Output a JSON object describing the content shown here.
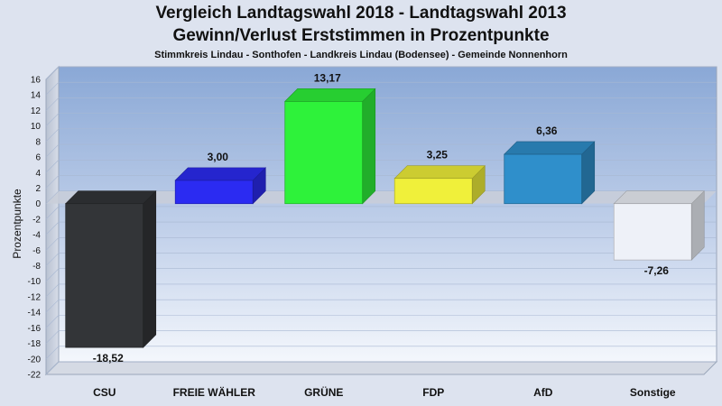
{
  "header": {
    "title_line1": "Vergleich Landtagswahl 2018 - Landtagswahl 2013",
    "title_line2": "Gewinn/Verlust Erststimmen in Prozentpunkte",
    "subtitle": "Stimmkreis Lindau - Sonthofen - Landkreis Lindau (Bodensee) - Gemeinde Nonnenhorn"
  },
  "chart_data": {
    "type": "bar",
    "title": "Vergleich Landtagswahl 2018 - Landtagswahl 2013",
    "subtitle": "Gewinn/Verlust Erststimmen in Prozentpunkte",
    "xlabel": "",
    "ylabel": "Prozentpunkte",
    "ylim": [
      -22,
      16
    ],
    "yticks": [
      16,
      14,
      12,
      10,
      8,
      6,
      4,
      2,
      0,
      -2,
      -4,
      -6,
      -8,
      -10,
      -12,
      -14,
      -16,
      -18,
      -20,
      -22
    ],
    "grid": true,
    "categories": [
      "CSU",
      "FREIE WÄHLER",
      "GRÜNE",
      "FDP",
      "AfD",
      "Sonstige"
    ],
    "values": [
      -18.52,
      3.0,
      13.17,
      3.25,
      6.36,
      -7.26
    ],
    "value_labels": [
      "-18,52",
      "3,00",
      "13,17",
      "3,25",
      "6,36",
      "-7,26"
    ],
    "colors": [
      "#333538",
      "#2b2bf2",
      "#2ef23a",
      "#f0f03a",
      "#2f8fcb",
      "#eef1f8"
    ]
  }
}
